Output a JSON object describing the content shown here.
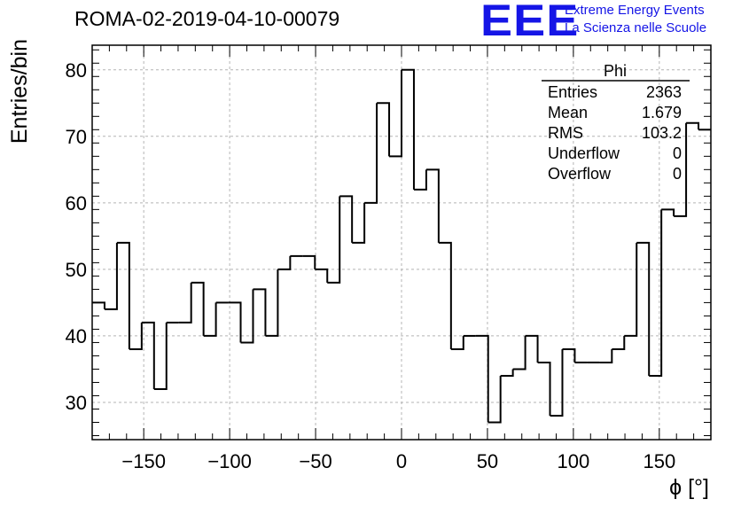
{
  "header": {
    "run_title": "ROMA-02-2019-04-10-00079",
    "logo_mark": "EEE",
    "logo_line1": "Extreme Energy Events",
    "logo_line2": "La Scienza nelle Scuole"
  },
  "stats_box": {
    "title": "Phi",
    "rows": [
      {
        "label": "Entries",
        "value": "2363"
      },
      {
        "label": "Mean",
        "value": "1.679"
      },
      {
        "label": "RMS",
        "value": "103.2"
      },
      {
        "label": "Underflow",
        "value": "0"
      },
      {
        "label": "Overflow",
        "value": "0"
      }
    ]
  },
  "chart_data": {
    "type": "histogram",
    "xlabel": "ϕ [°]",
    "ylabel": "Entries/bin",
    "xlim": [
      -180,
      180
    ],
    "ylim": [
      24.4,
      83.7
    ],
    "grid": true,
    "line_color": "#000000",
    "bin_edges": [
      -180,
      -172.8,
      -165.6,
      -158.4,
      -151.2,
      -144,
      -136.8,
      -129.6,
      -122.4,
      -115.2,
      -108,
      -100.8,
      -93.6,
      -86.4,
      -79.2,
      -72,
      -64.8,
      -57.6,
      -50.4,
      -43.2,
      -36,
      -28.8,
      -21.6,
      -14.4,
      -7.2,
      0,
      7.2,
      14.4,
      21.6,
      28.8,
      36,
      43.2,
      50.4,
      57.6,
      64.8,
      72,
      79.2,
      86.4,
      93.6,
      100.8,
      108,
      115.2,
      122.4,
      129.6,
      136.8,
      144,
      151.2,
      158.4,
      165.6,
      172.8,
      180
    ],
    "values": [
      45,
      44,
      54,
      38,
      42,
      32,
      42,
      42,
      48,
      40,
      45,
      45,
      39,
      47,
      40,
      50,
      52,
      52,
      50,
      48,
      61,
      54,
      60,
      75,
      67,
      80,
      62,
      65,
      54,
      38,
      40,
      40,
      27,
      34,
      35,
      40,
      36,
      28,
      38,
      36,
      36,
      36,
      38,
      40,
      54,
      34,
      59,
      58,
      72,
      71
    ],
    "xticks": [
      -150,
      -100,
      -50,
      0,
      50,
      100,
      150
    ],
    "yticks": [
      30,
      40,
      50,
      60,
      70,
      80
    ]
  }
}
